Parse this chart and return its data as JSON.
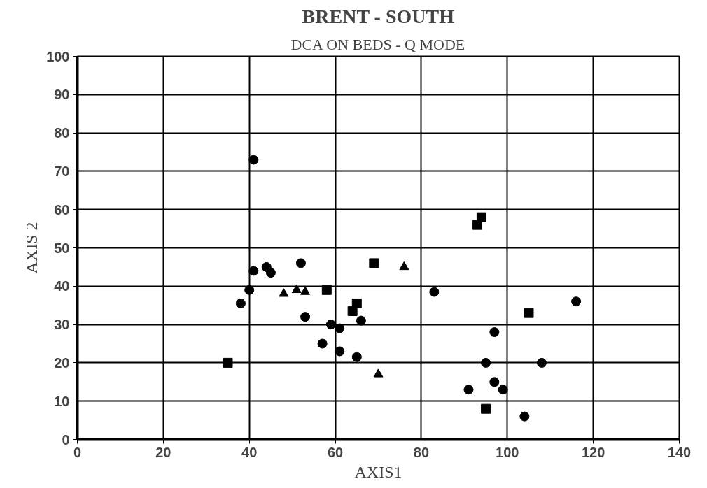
{
  "chart_data": {
    "type": "scatter",
    "title": "BRENT - SOUTH",
    "subtitle": "DCA ON BEDS - Q MODE",
    "xlabel": "AXIS1",
    "ylabel": "AXIS 2",
    "xlim": [
      0,
      140
    ],
    "ylim": [
      0,
      100
    ],
    "xticks": [
      0,
      20,
      40,
      60,
      80,
      100,
      120,
      140
    ],
    "yticks": [
      0,
      10,
      20,
      30,
      40,
      50,
      60,
      70,
      80,
      90,
      100
    ],
    "grid": true,
    "series": [
      {
        "marker": "circle",
        "color": "#000000",
        "x": [
          41,
          41,
          44,
          45,
          52,
          40,
          38,
          53,
          57,
          59,
          61,
          61,
          65,
          66,
          83,
          97,
          95,
          91,
          97,
          99,
          104,
          108,
          116
        ],
        "values": [
          73,
          44,
          45,
          43.5,
          46,
          39,
          35.5,
          32,
          25,
          30,
          29,
          23,
          21.5,
          31,
          38.5,
          28,
          20,
          13,
          15,
          13,
          6,
          20,
          36
        ]
      },
      {
        "marker": "square",
        "color": "#000000",
        "x": [
          35,
          58,
          64,
          65,
          69,
          93,
          94,
          105,
          95
        ],
        "values": [
          20,
          39,
          33.5,
          35.5,
          46,
          56,
          58,
          33,
          8
        ]
      },
      {
        "marker": "triangle",
        "color": "#000000",
        "x": [
          48,
          51,
          53,
          76,
          70
        ],
        "values": [
          38,
          39,
          38.5,
          45,
          17
        ]
      }
    ]
  }
}
